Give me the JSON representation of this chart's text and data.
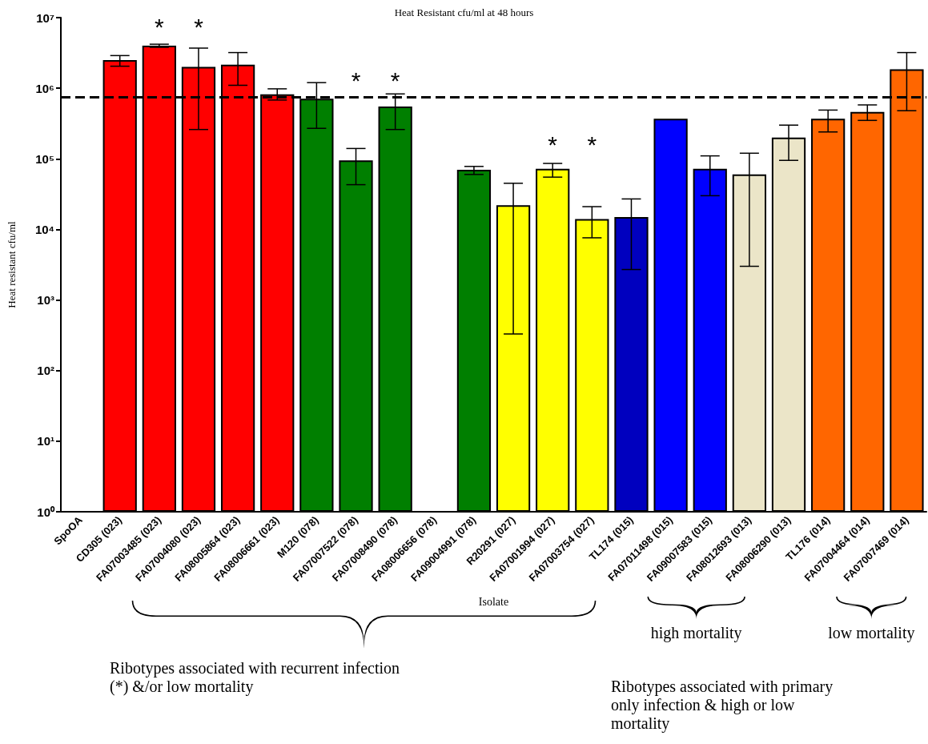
{
  "chart_data": {
    "type": "bar",
    "title": "Heat Resistant cfu/ml at 48 hours",
    "xlabel": "Isolate",
    "ylabel": "Heat resistant cfu/ml",
    "categories": [
      "SpoOA",
      "CD305 (023)",
      "FA07003485 (023)",
      "FA07004080 (023)",
      "FA08005864 (023)",
      "FA08006661 (023)",
      "M120 (078)",
      "FA07007522 (078)",
      "FA07008490 (078)",
      "FA08006656 (078)",
      "FA09004991 (078)",
      "R20291 (027)",
      "FA07001994 (027)",
      "FA07003754 (027)",
      "TL174 (015)",
      "FA07011498 (015)",
      "FA09007583 (015)",
      "FA08012693 (013)",
      "FA08006290 (013)",
      "TL176 (014)",
      "FA07004464 (014)",
      "FA07007469 (014)"
    ],
    "values": [
      null,
      2500000,
      4000000,
      2000000,
      2150000,
      820000,
      710000,
      95000,
      550000,
      null,
      70000,
      22000,
      72000,
      14000,
      15000,
      370000,
      72000,
      60000,
      200000,
      370000,
      460000,
      1850000
    ],
    "errors": [
      null,
      [
        2050000,
        2900000
      ],
      [
        3800000,
        4200000
      ],
      [
        260000,
        3700000
      ],
      [
        1100000,
        3200000
      ],
      [
        680000,
        980000
      ],
      [
        270000,
        1200000
      ],
      [
        43000,
        140000
      ],
      [
        260000,
        830000
      ],
      null,
      [
        60000,
        78000
      ],
      [
        330,
        45000
      ],
      [
        55000,
        86000
      ],
      [
        7600,
        21000
      ],
      [
        2700,
        27000
      ],
      null,
      [
        30000,
        110000
      ],
      [
        3000,
        120000
      ],
      [
        95000,
        300000
      ],
      [
        240000,
        490000
      ],
      [
        350000,
        580000
      ],
      [
        480000,
        3200000
      ]
    ],
    "colors": [
      "#ff0000",
      "#ff0000",
      "#ff0000",
      "#ff0000",
      "#ff0000",
      "#ff0000",
      "#007f00",
      "#007f00",
      "#007f00",
      "#007f00",
      "#007f00",
      "#ffff00",
      "#ffff00",
      "#ffff00",
      "#0000bf",
      "#0000ff",
      "#0000ff",
      "#ebe5c8",
      "#ebe5c8",
      "#ff6600",
      "#ff6600",
      "#ff6600"
    ],
    "log": "y",
    "ylim": [
      1,
      10000000
    ],
    "yticks": [
      {
        "value": 1,
        "label": "10⁰"
      },
      {
        "value": 10,
        "label": "10¹"
      },
      {
        "value": 100,
        "label": "10²"
      },
      {
        "value": 1000,
        "label": "10³"
      },
      {
        "value": 10000,
        "label": "10⁴"
      },
      {
        "value": 100000,
        "label": "10⁵"
      },
      {
        "value": 1000000,
        "label": "10⁶"
      },
      {
        "value": 10000000,
        "label": "10⁷"
      }
    ],
    "grid": false,
    "ref_lines": [
      {
        "axis": "y",
        "value": 750000,
        "label": null,
        "color": "#000000",
        "line_style": "dashed"
      }
    ],
    "annotations": [
      "*",
      "*",
      "*",
      "*",
      "*",
      "*",
      "high mortality",
      "low mortality",
      "Ribotypes associated with recurrent infection (*) &/or low mortality",
      "Ribotypes associated with primary only infection & high or low mortality"
    ]
  }
}
